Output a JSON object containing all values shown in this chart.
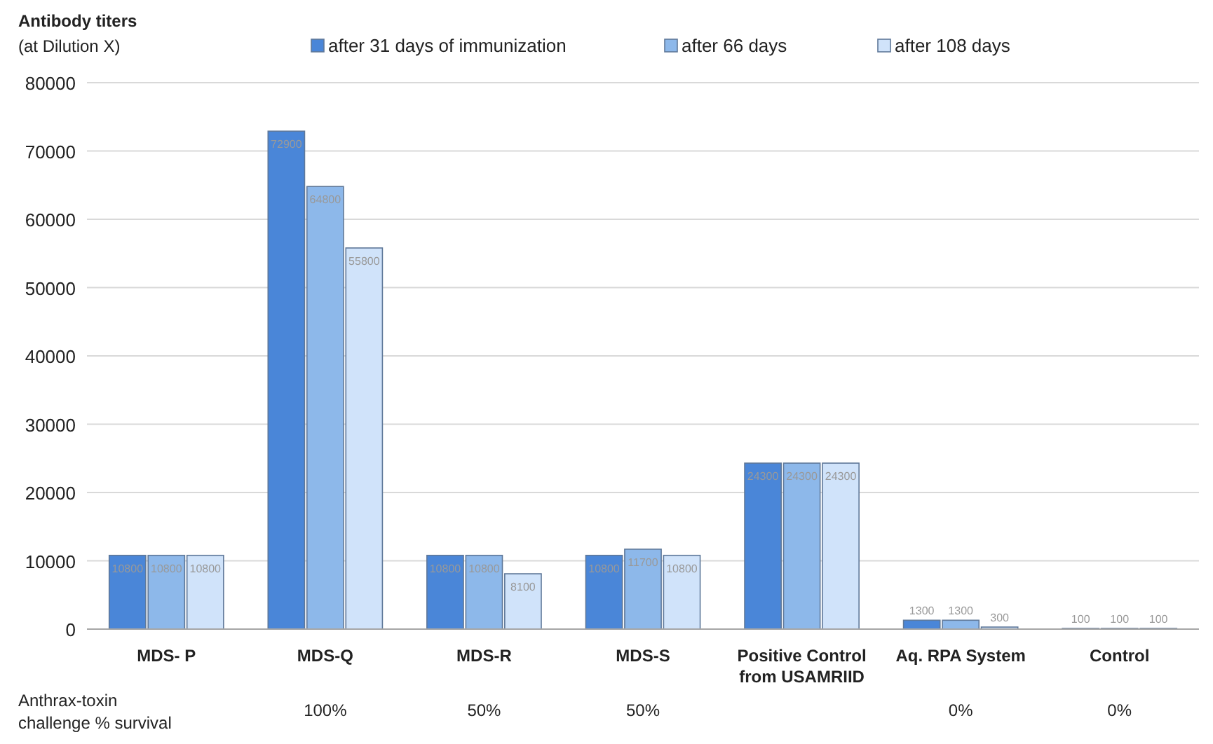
{
  "chart_data": {
    "type": "bar",
    "title": "Antibody titers",
    "subtitle": "(at Dilution X)",
    "categories": [
      "MDS- P",
      "MDS-Q",
      "MDS-R",
      "MDS-S",
      "Positive Control from USAMRIID",
      "Aq. RPA System",
      "Control"
    ],
    "series": [
      {
        "name": "after 31 days of immunization",
        "color": "#4a86d8",
        "values": [
          10800,
          72900,
          10800,
          10800,
          24300,
          1300,
          100
        ]
      },
      {
        "name": "after 66 days",
        "color": "#8db8ea",
        "values": [
          10800,
          64800,
          10800,
          11700,
          24300,
          1300,
          100
        ]
      },
      {
        "name": "after 108 days",
        "color": "#d0e3fa",
        "values": [
          10800,
          55800,
          8100,
          10800,
          24300,
          300,
          100
        ]
      }
    ],
    "ylim": [
      0,
      80000
    ],
    "yticks": [
      0,
      10000,
      20000,
      30000,
      40000,
      50000,
      60000,
      70000,
      80000
    ],
    "grid": "y",
    "legend": "top",
    "data_labels": true,
    "annotations": [
      "Anthrax-toxin challenge % survival",
      "100%",
      "50%",
      "50%",
      "0%",
      "0%"
    ]
  }
}
